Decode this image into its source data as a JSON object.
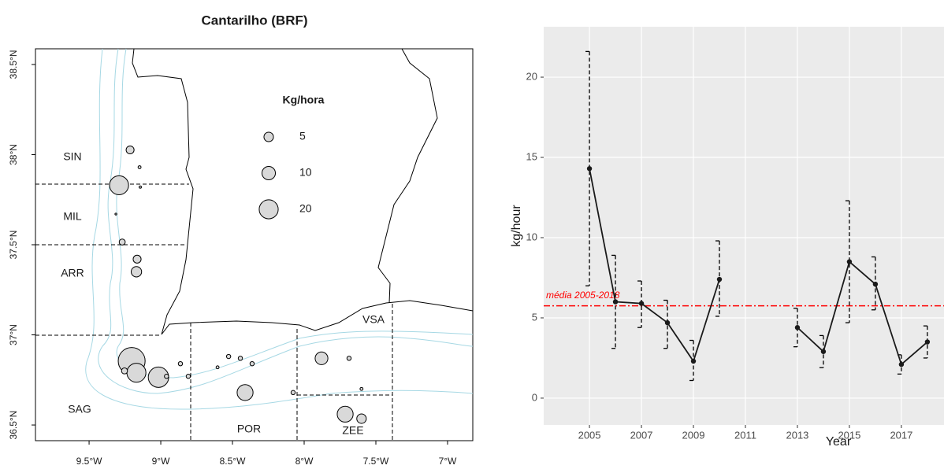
{
  "chart_data": [
    {
      "type": "bubble",
      "title": "Cantarilho (BRF)",
      "x": [
        -9.214,
        -9.148,
        -9.291,
        -9.143,
        -9.313,
        -9.269,
        -9.165,
        -9.17,
        -9.203,
        -9.17,
        -9.253,
        -9.016,
        -8.96,
        -8.863,
        -8.808,
        -8.604,
        -8.527,
        -8.412,
        -8.445,
        -8.363,
        -8.077,
        -7.879,
        -7.687,
        -7.6,
        -7.714,
        -7.6
      ],
      "y": [
        38.026,
        37.93,
        37.83,
        37.82,
        37.67,
        37.515,
        37.42,
        37.35,
        36.855,
        36.79,
        36.8,
        36.765,
        36.77,
        36.84,
        36.77,
        36.82,
        36.88,
        36.68,
        36.87,
        36.84,
        36.68,
        36.87,
        36.87,
        36.7,
        36.56,
        36.535
      ],
      "sizes": [
        3.5,
        0.5,
        20,
        0.3,
        0.2,
        2,
        3.5,
        6,
        40,
        20,
        2,
        23,
        1,
        1,
        1,
        0.5,
        1,
        14,
        1,
        1,
        1,
        9,
        1,
        0.5,
        14,
        5
      ],
      "size_legend": {
        "title": "Kg/hora",
        "values": [
          5,
          10,
          20
        ]
      },
      "regions": [
        "SIN",
        "MIL",
        "ARR",
        "SAG",
        "POR",
        "VSA",
        "ZEE"
      ],
      "xlim": [
        -9.874,
        -6.824
      ],
      "ylim": [
        36.413,
        38.587
      ],
      "xticks": [
        {
          "value": -9.5,
          "label": "9.5°W"
        },
        {
          "value": -9,
          "label": "9°W"
        },
        {
          "value": -8.5,
          "label": "8.5°W"
        },
        {
          "value": -8,
          "label": "8°W"
        },
        {
          "value": -7.5,
          "label": "7.5°W"
        },
        {
          "value": -7,
          "label": "7°W"
        }
      ],
      "yticks": [
        {
          "value": 36.5,
          "label": "36.5°N"
        },
        {
          "value": 37,
          "label": "37°N"
        },
        {
          "value": 37.5,
          "label": "37.5°N"
        },
        {
          "value": 38,
          "label": "38°N"
        },
        {
          "value": 38.5,
          "label": "38.5°N"
        }
      ],
      "color": "#d9d9d9"
    },
    {
      "type": "line",
      "x_label": "Year",
      "y_label": "kg/hour",
      "x": [
        2005,
        2006,
        2007,
        2008,
        2009,
        2010,
        2011,
        2012,
        2013,
        2014,
        2015,
        2016,
        2017,
        2018
      ],
      "series": [
        {
          "color": "#1a1a1a",
          "values": [
            14.3,
            6.0,
            5.9,
            4.7,
            2.3,
            7.4,
            null,
            null,
            4.4,
            2.9,
            8.5,
            7.1,
            2.1,
            3.5
          ],
          "upper": [
            21.6,
            8.9,
            7.3,
            6.1,
            3.6,
            9.8,
            null,
            null,
            5.6,
            3.9,
            12.3,
            8.8,
            2.7,
            4.5
          ],
          "lower": [
            7.0,
            3.1,
            4.4,
            3.1,
            1.1,
            5.1,
            null,
            null,
            3.2,
            1.9,
            4.7,
            5.5,
            1.5,
            2.5
          ]
        }
      ],
      "hline": {
        "value": 5.75,
        "label": "média 2005-2018",
        "color": "#ff0000"
      },
      "xlim": [
        2003.24,
        2018.64
      ],
      "ylim": [
        -1.67,
        23.14
      ],
      "xticks": [
        2005,
        2007,
        2009,
        2011,
        2013,
        2015,
        2017
      ],
      "yticks": [
        0,
        5,
        10,
        15,
        20
      ],
      "grid": true
    }
  ]
}
